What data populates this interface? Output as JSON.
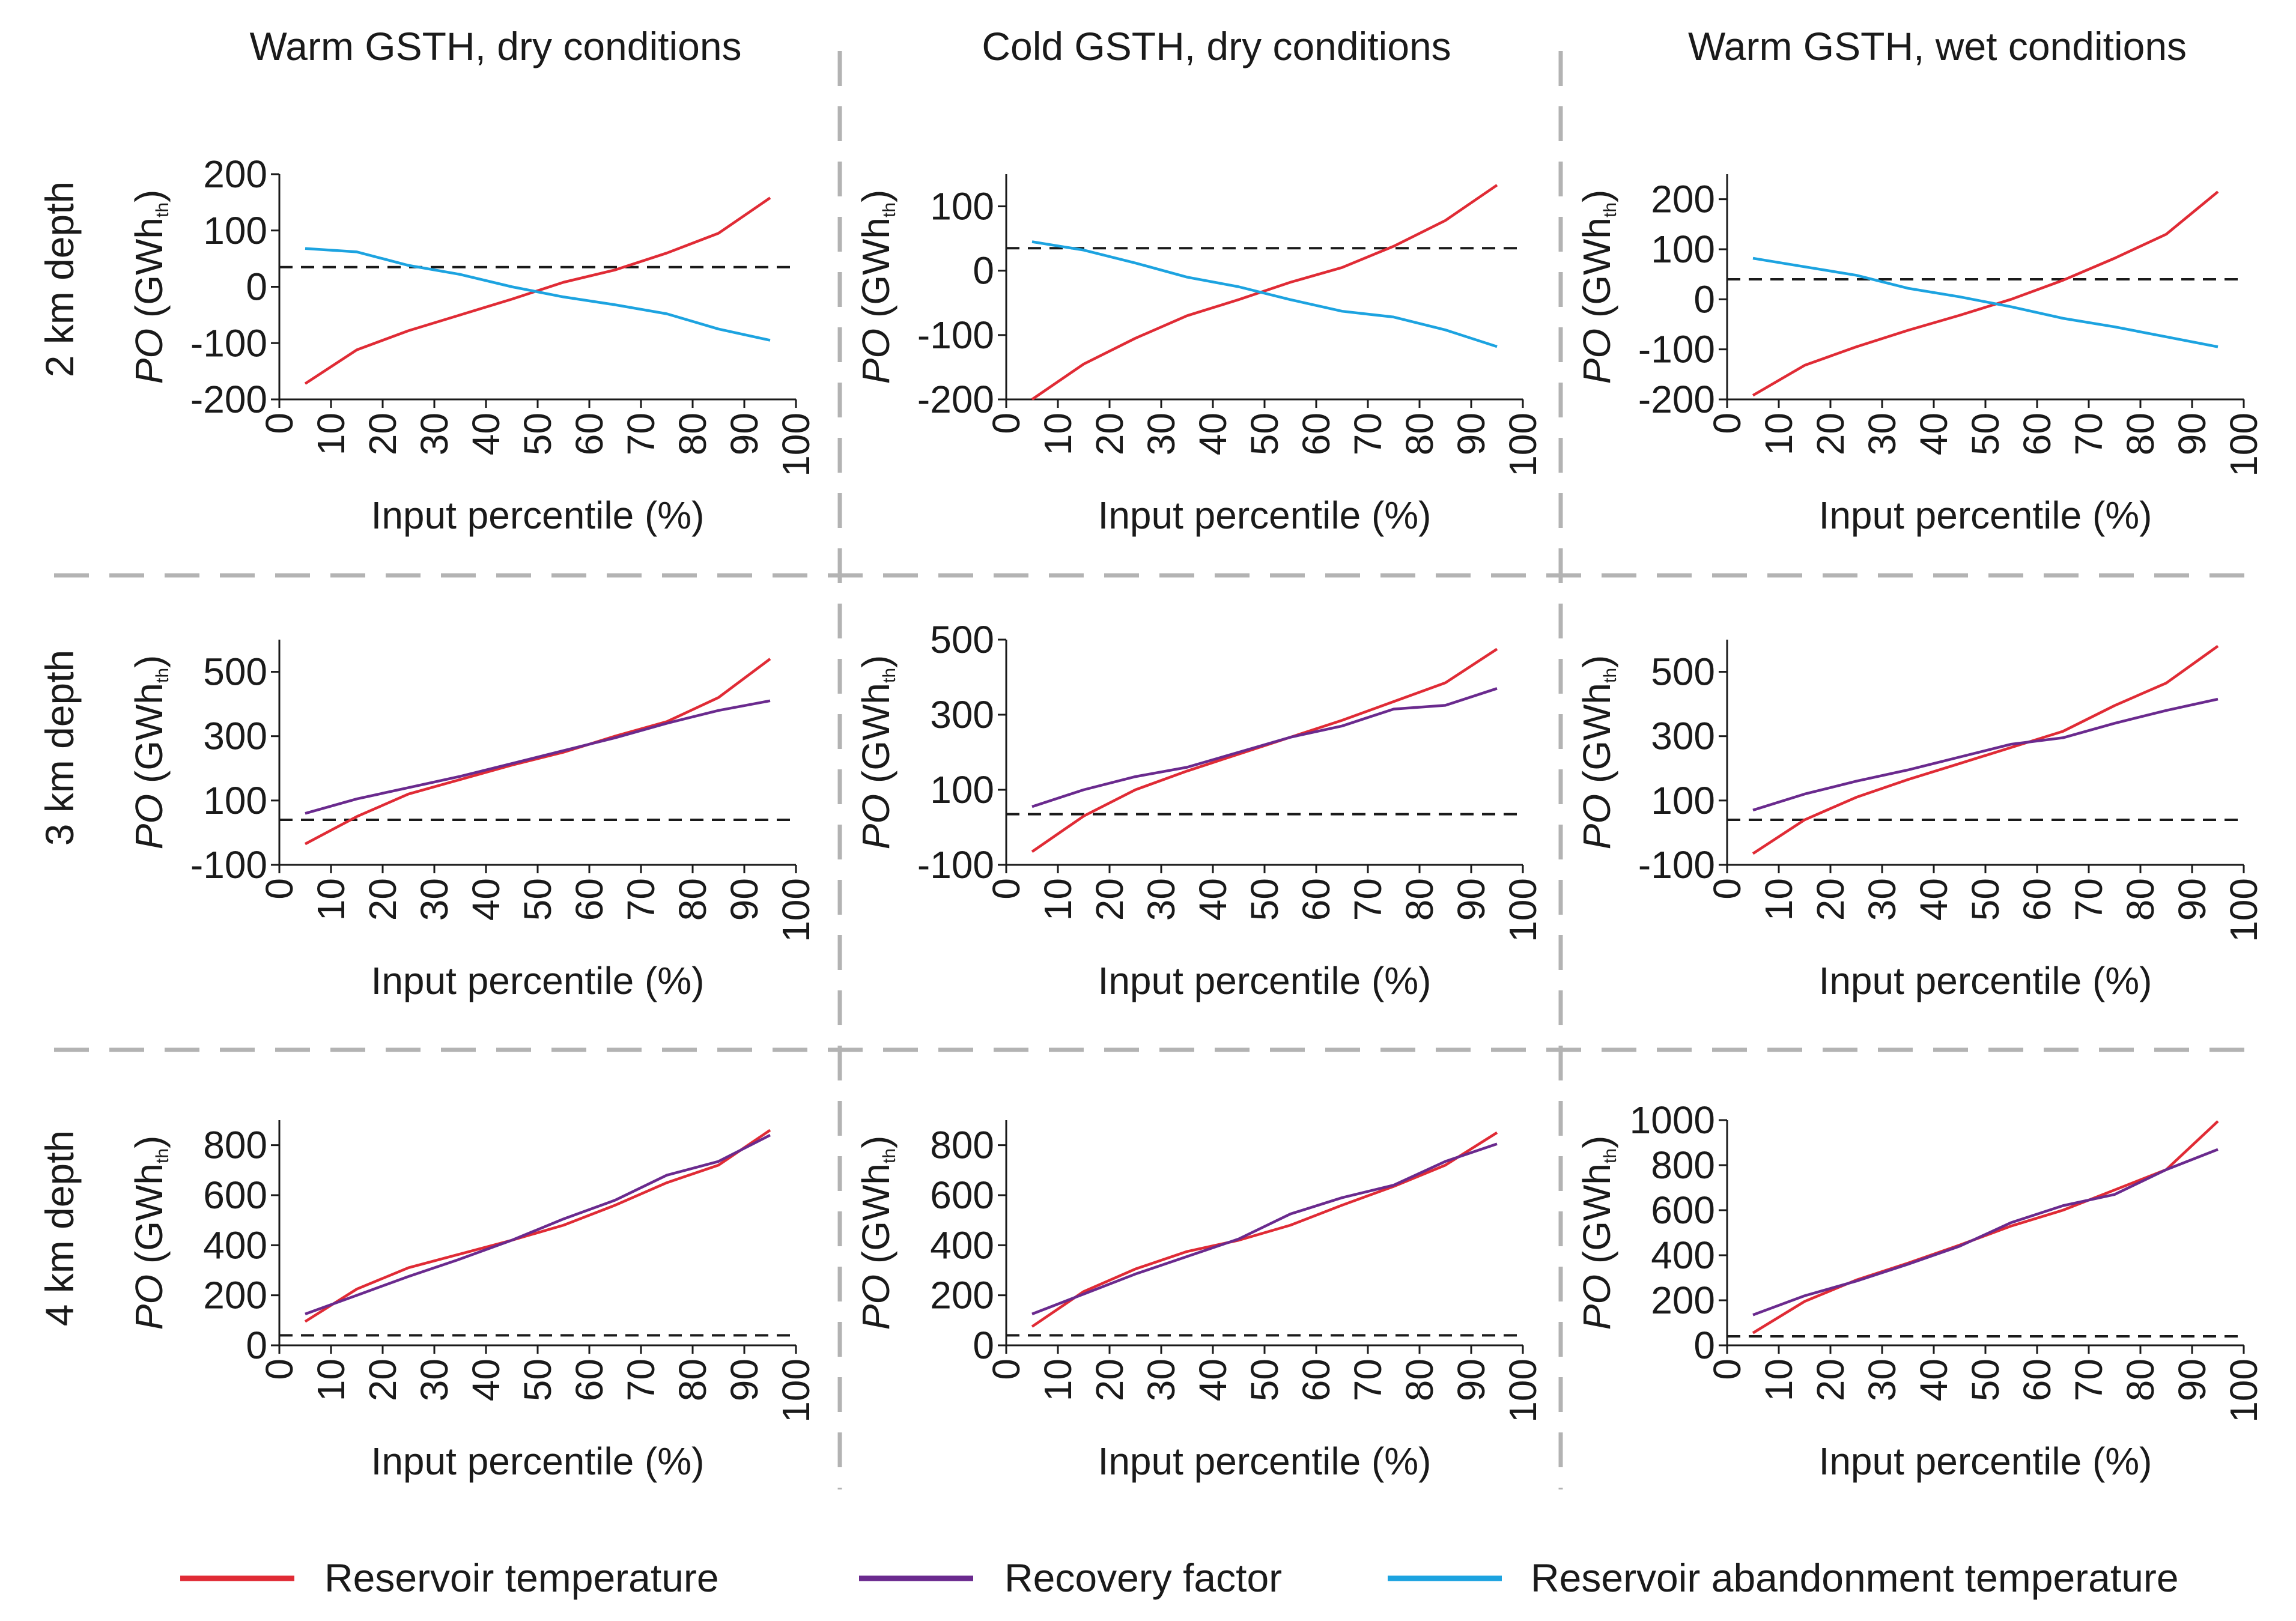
{
  "figure": {
    "column_titles": [
      "Warm GSTH, dry conditions",
      "Cold GSTH, dry conditions",
      "Warm GSTH, wet conditions"
    ],
    "row_labels": [
      "2 km depth",
      "3 km depth",
      "4 km depth"
    ],
    "xlabel": "Input percentile (%)",
    "ylabel": "PO",
    "ylabel_unit": "(GWh",
    "ylabel_sub": "th",
    "ylabel_close": ")",
    "legend": [
      {
        "label": "Reservoir temperature",
        "color": "#e02b35"
      },
      {
        "label": "Recovery factor",
        "color": "#6a2a8e"
      },
      {
        "label": "Reservoir abandonment temperature",
        "color": "#1ca3e0"
      }
    ]
  },
  "chart_data": [
    {
      "type": "line",
      "row": 0,
      "col": 0,
      "title": "Warm GSTH, dry conditions",
      "subtitle": "2 km depth",
      "xlabel": "Input percentile (%)",
      "ylabel": "PO (GWhth)",
      "xlim": [
        0,
        100
      ],
      "ylim": [
        -200,
        200
      ],
      "xticks": [
        0,
        10,
        20,
        30,
        40,
        50,
        60,
        70,
        80,
        90,
        100
      ],
      "yticks": [
        -200,
        -100,
        0,
        100,
        200
      ],
      "x": [
        5,
        15,
        25,
        35,
        45,
        55,
        65,
        75,
        85,
        95
      ],
      "threshold": 35,
      "series": [
        {
          "name": "Reservoir temperature",
          "values": [
            -172,
            -112,
            -78,
            -50,
            -22,
            8,
            30,
            60,
            95,
            158
          ]
        },
        {
          "name": "Reservoir abandonment temperature",
          "values": [
            68,
            62,
            38,
            22,
            0,
            -18,
            -32,
            -48,
            -75,
            -95
          ]
        }
      ]
    },
    {
      "type": "line",
      "row": 0,
      "col": 1,
      "title": "Cold GSTH, dry conditions",
      "subtitle": "2 km depth",
      "xlabel": "Input percentile (%)",
      "ylabel": "PO (GWhth)",
      "xlim": [
        0,
        100
      ],
      "ylim": [
        -200,
        150
      ],
      "xticks": [
        0,
        10,
        20,
        30,
        40,
        50,
        60,
        70,
        80,
        90,
        100
      ],
      "yticks": [
        -200,
        -100,
        0,
        100
      ],
      "x": [
        5,
        15,
        25,
        35,
        45,
        55,
        65,
        75,
        85,
        95
      ],
      "threshold": 35,
      "series": [
        {
          "name": "Reservoir temperature",
          "values": [
            -200,
            -145,
            -105,
            -70,
            -45,
            -18,
            5,
            38,
            78,
            133
          ]
        },
        {
          "name": "Reservoir abandonment temperature",
          "values": [
            45,
            32,
            12,
            -10,
            -25,
            -45,
            -63,
            -72,
            -92,
            -118
          ]
        }
      ]
    },
    {
      "type": "line",
      "row": 0,
      "col": 2,
      "title": "Warm GSTH, wet conditions",
      "subtitle": "2 km depth",
      "xlabel": "Input percentile (%)",
      "ylabel": "PO (GWhth)",
      "xlim": [
        0,
        100
      ],
      "ylim": [
        -200,
        250
      ],
      "xticks": [
        0,
        10,
        20,
        30,
        40,
        50,
        60,
        70,
        80,
        90,
        100
      ],
      "yticks": [
        -200,
        -100,
        0,
        100,
        200
      ],
      "x": [
        5,
        15,
        25,
        35,
        45,
        55,
        65,
        75,
        85,
        95
      ],
      "threshold": 40,
      "series": [
        {
          "name": "Reservoir temperature",
          "values": [
            -192,
            -132,
            -95,
            -62,
            -32,
            0,
            38,
            82,
            130,
            215
          ]
        },
        {
          "name": "Reservoir abandonment temperature",
          "values": [
            82,
            65,
            48,
            22,
            5,
            -15,
            -38,
            -55,
            -75,
            -95
          ]
        }
      ]
    },
    {
      "type": "line",
      "row": 1,
      "col": 0,
      "title": "Warm GSTH, dry conditions",
      "subtitle": "3 km depth",
      "xlabel": "Input percentile (%)",
      "ylabel": "PO (GWhth)",
      "xlim": [
        0,
        100
      ],
      "ylim": [
        -100,
        600
      ],
      "xticks": [
        0,
        10,
        20,
        30,
        40,
        50,
        60,
        70,
        80,
        90,
        100
      ],
      "yticks": [
        -100,
        100,
        300,
        500
      ],
      "x": [
        5,
        15,
        25,
        35,
        45,
        55,
        65,
        75,
        85,
        95
      ],
      "threshold": 40,
      "series": [
        {
          "name": "Reservoir temperature",
          "values": [
            -35,
            50,
            120,
            165,
            210,
            250,
            300,
            345,
            420,
            540
          ]
        },
        {
          "name": "Recovery factor",
          "values": [
            60,
            105,
            140,
            175,
            215,
            255,
            295,
            340,
            380,
            410
          ]
        }
      ]
    },
    {
      "type": "line",
      "row": 1,
      "col": 1,
      "title": "Cold GSTH, dry conditions",
      "subtitle": "3 km depth",
      "xlabel": "Input percentile (%)",
      "ylabel": "PO (GWhth)",
      "xlim": [
        0,
        100
      ],
      "ylim": [
        -100,
        500
      ],
      "xticks": [
        0,
        10,
        20,
        30,
        40,
        50,
        60,
        70,
        80,
        90,
        100
      ],
      "yticks": [
        -100,
        100,
        300,
        500
      ],
      "x": [
        5,
        15,
        25,
        35,
        45,
        55,
        65,
        75,
        85,
        95
      ],
      "threshold": 35,
      "series": [
        {
          "name": "Reservoir temperature",
          "values": [
            -65,
            30,
            100,
            150,
            195,
            240,
            285,
            335,
            385,
            475
          ]
        },
        {
          "name": "Recovery factor",
          "values": [
            55,
            100,
            135,
            160,
            200,
            240,
            270,
            315,
            325,
            370
          ]
        }
      ]
    },
    {
      "type": "line",
      "row": 1,
      "col": 2,
      "title": "Warm GSTH, wet conditions",
      "subtitle": "3 km depth",
      "xlabel": "Input percentile (%)",
      "ylabel": "PO (GWhth)",
      "xlim": [
        0,
        100
      ],
      "ylim": [
        -100,
        600
      ],
      "xticks": [
        0,
        10,
        20,
        30,
        40,
        50,
        60,
        70,
        80,
        90,
        100
      ],
      "yticks": [
        -100,
        100,
        300,
        500
      ],
      "x": [
        5,
        15,
        25,
        35,
        45,
        55,
        65,
        75,
        85,
        95
      ],
      "threshold": 40,
      "series": [
        {
          "name": "Reservoir temperature",
          "values": [
            -65,
            40,
            110,
            165,
            215,
            265,
            315,
            395,
            465,
            580
          ]
        },
        {
          "name": "Recovery factor",
          "values": [
            70,
            120,
            160,
            195,
            235,
            275,
            295,
            340,
            380,
            415
          ]
        }
      ]
    },
    {
      "type": "line",
      "row": 2,
      "col": 0,
      "title": "Warm GSTH, dry conditions",
      "subtitle": "4 km depth",
      "xlabel": "Input percentile (%)",
      "ylabel": "PO (GWhth)",
      "xlim": [
        0,
        100
      ],
      "ylim": [
        0,
        900
      ],
      "xticks": [
        0,
        10,
        20,
        30,
        40,
        50,
        60,
        70,
        80,
        90,
        100
      ],
      "yticks": [
        0,
        200,
        400,
        600,
        800
      ],
      "x": [
        5,
        15,
        25,
        35,
        45,
        55,
        65,
        75,
        85,
        95
      ],
      "threshold": 40,
      "series": [
        {
          "name": "Reservoir temperature",
          "values": [
            95,
            225,
            310,
            365,
            420,
            480,
            560,
            650,
            720,
            860
          ]
        },
        {
          "name": "Recovery factor",
          "values": [
            125,
            200,
            275,
            345,
            420,
            505,
            580,
            680,
            735,
            840
          ]
        }
      ]
    },
    {
      "type": "line",
      "row": 2,
      "col": 1,
      "title": "Cold GSTH, dry conditions",
      "subtitle": "4 km depth",
      "xlabel": "Input percentile (%)",
      "ylabel": "PO (GWhth)",
      "xlim": [
        0,
        100
      ],
      "ylim": [
        0,
        900
      ],
      "xticks": [
        0,
        10,
        20,
        30,
        40,
        50,
        60,
        70,
        80,
        90,
        100
      ],
      "yticks": [
        0,
        200,
        400,
        600,
        800
      ],
      "x": [
        5,
        15,
        25,
        35,
        45,
        55,
        65,
        75,
        85,
        95
      ],
      "threshold": 40,
      "series": [
        {
          "name": "Reservoir temperature",
          "values": [
            75,
            215,
            305,
            375,
            420,
            480,
            560,
            635,
            720,
            850
          ]
        },
        {
          "name": "Recovery factor",
          "values": [
            125,
            205,
            285,
            355,
            425,
            525,
            590,
            640,
            735,
            805
          ]
        }
      ]
    },
    {
      "type": "line",
      "row": 2,
      "col": 2,
      "title": "Warm GSTH, wet conditions",
      "subtitle": "4 km depth",
      "xlabel": "Input percentile (%)",
      "ylabel": "PO (GWhth)",
      "xlim": [
        0,
        100
      ],
      "ylim": [
        0,
        1000
      ],
      "xticks": [
        0,
        10,
        20,
        30,
        40,
        50,
        60,
        70,
        80,
        90,
        100
      ],
      "yticks": [
        0,
        200,
        400,
        600,
        800,
        1000
      ],
      "x": [
        5,
        15,
        25,
        35,
        45,
        55,
        65,
        75,
        85,
        95
      ],
      "threshold": 40,
      "series": [
        {
          "name": "Reservoir temperature",
          "values": [
            55,
            195,
            290,
            365,
            445,
            530,
            600,
            690,
            780,
            995
          ]
        },
        {
          "name": "Recovery factor",
          "values": [
            135,
            220,
            285,
            360,
            440,
            545,
            620,
            670,
            780,
            870
          ]
        }
      ]
    }
  ]
}
